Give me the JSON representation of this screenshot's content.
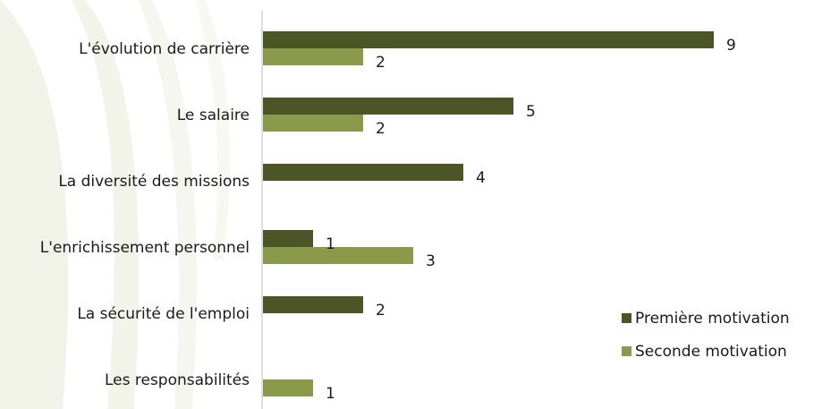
{
  "chart_data": {
    "type": "bar",
    "orientation": "horizontal",
    "categories": [
      "L'évolution de carrière",
      "Le salaire",
      "La diversité des missions",
      "L'enrichissement personnel",
      "La sécurité de l'emploi",
      "Les responsabilités"
    ],
    "series": [
      {
        "name": "Première motivation",
        "color": "#4b5526",
        "values": [
          9,
          5,
          4,
          1,
          2,
          null
        ]
      },
      {
        "name": "Seconde motivation",
        "color": "#8a9a4a",
        "values": [
          2,
          2,
          null,
          3,
          null,
          1
        ]
      }
    ],
    "xlim": [
      0,
      9
    ],
    "grid": false,
    "legend_position": "right"
  }
}
